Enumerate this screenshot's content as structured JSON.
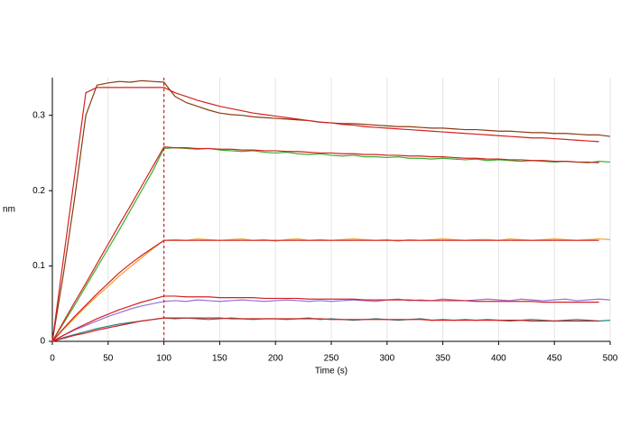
{
  "chart_data": {
    "type": "line",
    "xlabel": "Time (s)",
    "ylabel": "nm",
    "x": [
      0,
      10,
      20,
      30,
      40,
      50,
      60,
      70,
      80,
      90,
      100,
      110,
      120,
      130,
      140,
      150,
      160,
      170,
      180,
      190,
      200,
      210,
      220,
      230,
      240,
      250,
      260,
      270,
      280,
      290,
      300,
      310,
      320,
      330,
      340,
      350,
      360,
      370,
      380,
      390,
      400,
      410,
      420,
      430,
      440,
      450,
      460,
      470,
      480,
      490,
      500
    ],
    "xlim": [
      0,
      500
    ],
    "xticks": [
      0,
      50,
      100,
      150,
      200,
      250,
      300,
      350,
      400,
      450,
      500
    ],
    "ylim": [
      0,
      0.35
    ],
    "yticks": [
      0,
      0.1,
      0.2,
      0.3
    ],
    "grid": "x",
    "vlines": [
      {
        "x": 100,
        "color": "#d42020",
        "style": "dashed"
      }
    ],
    "series": [
      {
        "color": "#8b3a0f",
        "values": [
          0,
          0.09,
          0.19,
          0.3,
          0.34,
          0.343,
          0.345,
          0.344,
          0.346,
          0.345,
          0.344,
          0.325,
          0.317,
          0.312,
          0.307,
          0.303,
          0.301,
          0.3,
          0.298,
          0.297,
          0.296,
          0.295,
          0.294,
          0.293,
          0.291,
          0.29,
          0.289,
          0.289,
          0.288,
          0.287,
          0.286,
          0.285,
          0.285,
          0.284,
          0.283,
          0.283,
          0.282,
          0.281,
          0.281,
          0.28,
          0.279,
          0.279,
          0.278,
          0.277,
          0.277,
          0.276,
          0.276,
          0.275,
          0.274,
          0.274,
          0.272
        ]
      },
      {
        "color": "#3cad2c",
        "values": [
          0,
          0.024,
          0.048,
          0.073,
          0.098,
          0.123,
          0.148,
          0.174,
          0.2,
          0.226,
          0.256,
          0.257,
          0.256,
          0.255,
          0.256,
          0.254,
          0.253,
          0.252,
          0.253,
          0.251,
          0.25,
          0.251,
          0.249,
          0.248,
          0.249,
          0.247,
          0.246,
          0.247,
          0.245,
          0.245,
          0.244,
          0.245,
          0.243,
          0.243,
          0.242,
          0.243,
          0.242,
          0.241,
          0.242,
          0.24,
          0.241,
          0.24,
          0.239,
          0.24,
          0.239,
          0.238,
          0.239,
          0.238,
          0.237,
          0.239,
          0.238
        ]
      },
      {
        "color": "#f0a030",
        "values": [
          0,
          0.016,
          0.031,
          0.046,
          0.06,
          0.073,
          0.087,
          0.099,
          0.111,
          0.123,
          0.134,
          0.135,
          0.134,
          0.136,
          0.135,
          0.134,
          0.135,
          0.136,
          0.134,
          0.135,
          0.133,
          0.135,
          0.136,
          0.134,
          0.135,
          0.134,
          0.135,
          0.136,
          0.135,
          0.134,
          0.135,
          0.133,
          0.135,
          0.134,
          0.135,
          0.136,
          0.135,
          0.134,
          0.135,
          0.135,
          0.134,
          0.136,
          0.135,
          0.134,
          0.135,
          0.136,
          0.135,
          0.134,
          0.135,
          0.136,
          0.135
        ]
      },
      {
        "color": "#9a70d8",
        "values": [
          0,
          0.008,
          0.015,
          0.021,
          0.027,
          0.033,
          0.038,
          0.043,
          0.047,
          0.05,
          0.053,
          0.054,
          0.053,
          0.055,
          0.054,
          0.053,
          0.054,
          0.055,
          0.054,
          0.053,
          0.054,
          0.055,
          0.054,
          0.053,
          0.054,
          0.053,
          0.054,
          0.055,
          0.054,
          0.053,
          0.055,
          0.056,
          0.054,
          0.055,
          0.054,
          0.056,
          0.055,
          0.054,
          0.055,
          0.056,
          0.055,
          0.054,
          0.056,
          0.055,
          0.054,
          0.055,
          0.056,
          0.054,
          0.055,
          0.056,
          0.055
        ]
      },
      {
        "color": "#2a8080",
        "values": [
          0,
          0.005,
          0.009,
          0.013,
          0.017,
          0.02,
          0.023,
          0.025,
          0.027,
          0.029,
          0.031,
          0.03,
          0.031,
          0.03,
          0.029,
          0.03,
          0.031,
          0.03,
          0.029,
          0.03,
          0.03,
          0.029,
          0.03,
          0.031,
          0.029,
          0.03,
          0.029,
          0.028,
          0.029,
          0.03,
          0.029,
          0.028,
          0.029,
          0.03,
          0.028,
          0.029,
          0.028,
          0.029,
          0.028,
          0.029,
          0.028,
          0.027,
          0.028,
          0.029,
          0.028,
          0.027,
          0.028,
          0.029,
          0.028,
          0.027,
          0.028
        ]
      },
      {
        "color": "#d42020",
        "values": [
          0,
          0.11,
          0.22,
          0.33,
          0.337,
          0.337,
          0.337,
          0.337,
          0.337,
          0.337,
          0.337,
          0.33,
          0.325,
          0.32,
          0.316,
          0.312,
          0.309,
          0.306,
          0.303,
          0.301,
          0.299,
          0.297,
          0.295,
          0.293,
          0.291,
          0.29,
          0.288,
          0.287,
          0.285,
          0.284,
          0.283,
          0.282,
          0.281,
          0.28,
          0.279,
          0.278,
          0.277,
          0.276,
          0.275,
          0.274,
          0.273,
          0.272,
          0.271,
          0.27,
          0.27,
          0.269,
          0.268,
          0.267,
          0.266,
          0.265,
          null
        ]
      },
      {
        "color": "#d42020",
        "values": [
          0,
          0.026,
          0.052,
          0.077,
          0.103,
          0.129,
          0.155,
          0.18,
          0.206,
          0.232,
          0.258,
          0.257,
          0.257,
          0.256,
          0.256,
          0.255,
          0.255,
          0.254,
          0.254,
          0.253,
          0.253,
          0.252,
          0.252,
          0.251,
          0.25,
          0.25,
          0.249,
          0.249,
          0.248,
          0.248,
          0.247,
          0.247,
          0.246,
          0.246,
          0.245,
          0.245,
          0.244,
          0.243,
          0.243,
          0.242,
          0.242,
          0.241,
          0.241,
          0.24,
          0.24,
          0.239,
          0.239,
          0.238,
          0.238,
          0.237,
          null
        ]
      },
      {
        "color": "#d42020",
        "values": [
          0,
          0.017,
          0.033,
          0.048,
          0.063,
          0.077,
          0.091,
          0.103,
          0.114,
          0.124,
          0.134,
          0.134,
          0.134,
          0.134,
          0.134,
          0.134,
          0.134,
          0.134,
          0.134,
          0.134,
          0.134,
          0.134,
          0.134,
          0.134,
          0.134,
          0.134,
          0.134,
          0.134,
          0.134,
          0.134,
          0.134,
          0.134,
          0.134,
          0.134,
          0.134,
          0.134,
          0.134,
          0.134,
          0.134,
          0.134,
          0.134,
          0.134,
          0.134,
          0.134,
          0.134,
          0.134,
          0.134,
          0.134,
          0.134,
          0.134,
          null
        ]
      },
      {
        "color": "#d42020",
        "values": [
          0,
          0.008,
          0.016,
          0.023,
          0.03,
          0.036,
          0.042,
          0.047,
          0.052,
          0.056,
          0.06,
          0.06,
          0.059,
          0.059,
          0.059,
          0.058,
          0.058,
          0.058,
          0.058,
          0.057,
          0.057,
          0.057,
          0.057,
          0.056,
          0.056,
          0.056,
          0.056,
          0.056,
          0.055,
          0.055,
          0.055,
          0.055,
          0.055,
          0.054,
          0.054,
          0.054,
          0.054,
          0.054,
          0.053,
          0.053,
          0.053,
          0.053,
          0.053,
          0.053,
          0.052,
          0.052,
          0.052,
          0.052,
          0.052,
          0.052,
          null
        ]
      },
      {
        "color": "#d42020",
        "values": [
          0,
          0.004,
          0.008,
          0.011,
          0.015,
          0.018,
          0.021,
          0.024,
          0.027,
          0.029,
          0.031,
          0.031,
          0.031,
          0.031,
          0.031,
          0.031,
          0.03,
          0.03,
          0.03,
          0.03,
          0.03,
          0.03,
          0.03,
          0.03,
          0.03,
          0.029,
          0.029,
          0.029,
          0.029,
          0.029,
          0.029,
          0.029,
          0.029,
          0.029,
          0.028,
          0.028,
          0.028,
          0.028,
          0.028,
          0.028,
          0.028,
          0.028,
          0.028,
          0.027,
          0.027,
          0.027,
          0.027,
          0.027,
          0.027,
          0.027,
          null
        ]
      }
    ]
  }
}
